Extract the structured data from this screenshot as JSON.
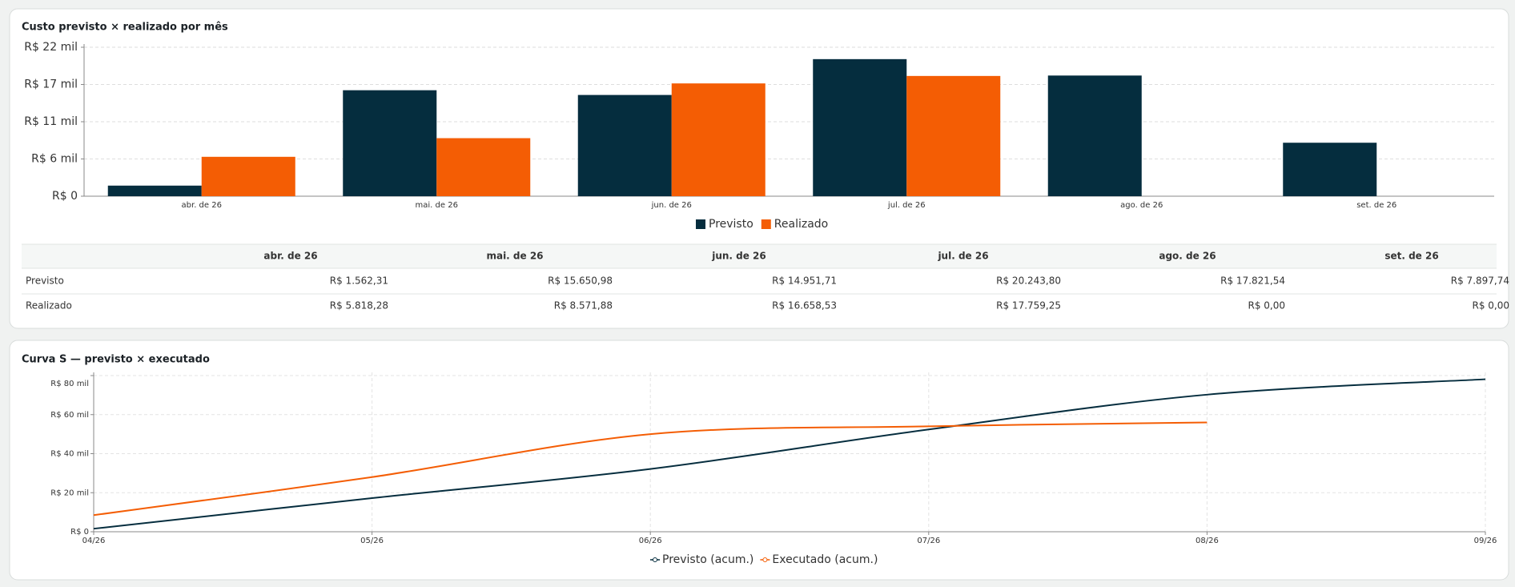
{
  "chart_data": [
    {
      "type": "bar",
      "title": "Custo previsto × realizado por mês",
      "categories": [
        "abr. de 26",
        "mai. de 26",
        "jun. de 26",
        "jul. de 26",
        "ago. de 26",
        "set. de 26"
      ],
      "series": [
        {
          "name": "Previsto",
          "color": "#052d3e",
          "values": [
            1562.31,
            15650.98,
            14951.71,
            20243.8,
            17821.54,
            7897.74
          ],
          "value_labels": [
            "R$ 1.562,31",
            "R$ 15.650,98",
            "R$ 14.951,71",
            "R$ 20.243,80",
            "R$ 17.821,54",
            "R$ 7.897,74"
          ]
        },
        {
          "name": "Realizado",
          "color": "#f45d04",
          "values": [
            5818.28,
            8571.88,
            16658.53,
            17759.25,
            0,
            0
          ],
          "value_labels": [
            "R$ 5.818,28",
            "R$ 8.571,88",
            "R$ 16.658,53",
            "R$ 17.759,25",
            "R$ 0,00",
            "R$ 0,00"
          ]
        }
      ],
      "ylim": [
        0,
        22000
      ],
      "yticks": [
        {
          "value": 0,
          "label": "R$ 0"
        },
        {
          "value": 5500,
          "label": "R$ 6 mil"
        },
        {
          "value": 11000,
          "label": "R$ 11 mil"
        },
        {
          "value": 16500,
          "label": "R$ 17 mil"
        },
        {
          "value": 22000,
          "label": "R$ 22 mil"
        }
      ],
      "grid": true
    },
    {
      "type": "line",
      "title": "Curva S — previsto × executado",
      "categories": [
        "04/26",
        "05/26",
        "06/26",
        "07/26",
        "08/26",
        "09/26"
      ],
      "series": [
        {
          "name": "Previsto (acum.)",
          "color": "#052d3e",
          "values": [
            1562,
            17213,
            32165,
            52409,
            70230,
            78128
          ]
        },
        {
          "name": "Executado (acum.)",
          "color": "#f45d04",
          "values": [
            8500,
            28000,
            50000,
            54000,
            56000,
            null
          ]
        }
      ],
      "ylim": [
        0,
        80000
      ],
      "yticks": [
        {
          "value": 0,
          "label": "R$ 0"
        },
        {
          "value": 20000,
          "label": "R$ 20 mil"
        },
        {
          "value": 40000,
          "label": "R$ 40 mil"
        },
        {
          "value": 60000,
          "label": "R$ 60 mil"
        },
        {
          "value": 80000,
          "label": "R$ 80 mil"
        }
      ],
      "grid": true
    }
  ]
}
